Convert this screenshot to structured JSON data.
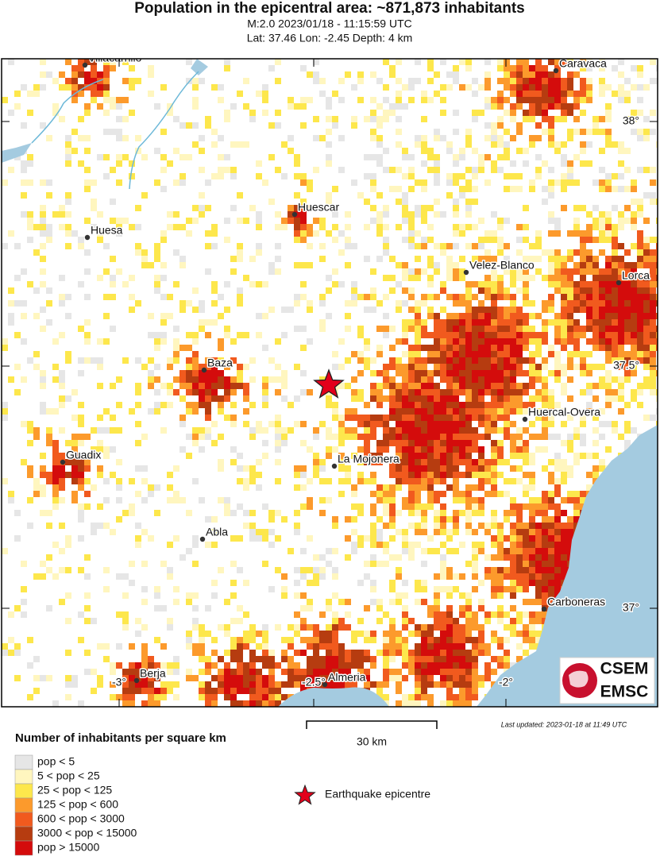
{
  "header": {
    "title": "Population in the epicentral area: ~871,873 inhabitants",
    "event": "M:2.0 2023/01/18 - 11:15:59 UTC",
    "location": "Lat: 37.46 Lon: -2.45 Depth: 4 km"
  },
  "map": {
    "cities": [
      "Villacarrillo",
      "Caravaca",
      "Huescar",
      "Huesa",
      "Velez-Blanco",
      "Lorca",
      "Baza",
      "Huercal-Overa",
      "Guadix",
      "La Mojonera",
      "Abla",
      "Carboneras",
      "Berja",
      "Almeria"
    ],
    "lat_labels": [
      "38°",
      "37.5°",
      "37°"
    ],
    "lon_labels": [
      "-3°",
      "-2.5°",
      "-2°"
    ],
    "scale": "30 km",
    "updated": "Last updated: 2023-01-18 at 11:49 UTC",
    "logo": [
      "CSEM",
      "EMSC"
    ]
  },
  "legend": {
    "title": "Number of inhabitants per square km",
    "items": [
      {
        "label": "pop < 5",
        "color": "#e6e6e6"
      },
      {
        "label": "5 < pop < 25",
        "color": "#fff6bf"
      },
      {
        "label": "25 < pop < 125",
        "color": "#fde74c"
      },
      {
        "label": "125 < pop < 600",
        "color": "#fc9a2c"
      },
      {
        "label": "600 < pop < 3000",
        "color": "#f15a1e"
      },
      {
        "label": "3000 < pop < 15000",
        "color": "#b63c10"
      },
      {
        "label": "pop > 15000",
        "color": "#d40c0c"
      }
    ],
    "epicentre": "Earthquake epicentre"
  }
}
